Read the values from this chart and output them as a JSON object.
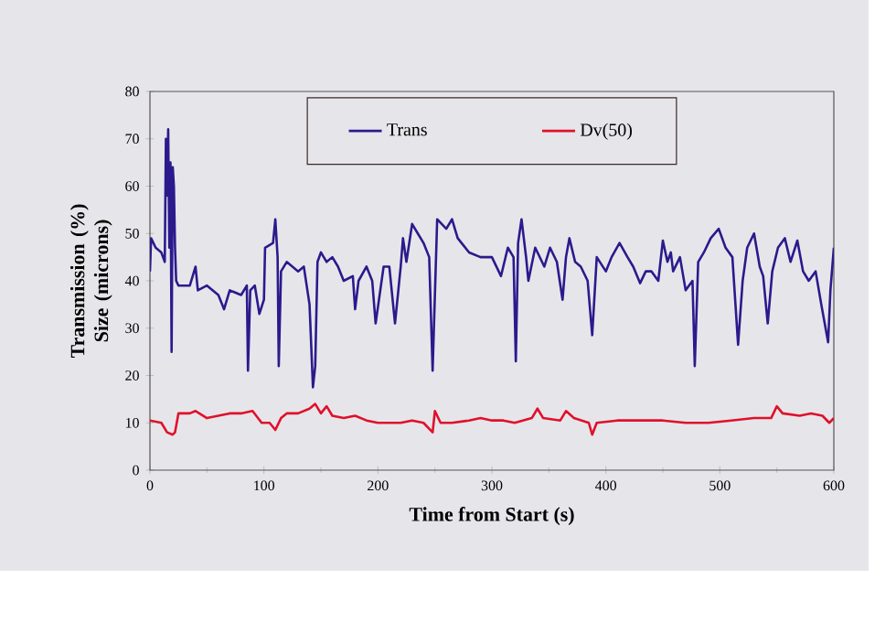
{
  "chart_data": {
    "type": "line",
    "xlabel": "Time from Start (s)",
    "ylabel": "Transmission (%) Size (microns)",
    "xlim": [
      0,
      600
    ],
    "xticks": [
      0,
      100,
      200,
      300,
      400,
      500,
      600
    ],
    "ylim": [
      0,
      80
    ],
    "yticks": [
      0,
      10,
      20,
      30,
      40,
      50,
      60,
      70,
      80
    ],
    "legend": "top",
    "grid": false,
    "series": [
      {
        "name": "Trans",
        "color": "#2b1a8c",
        "x": [
          0,
          1,
          5,
          10,
          13,
          14,
          15,
          16,
          17,
          18,
          19,
          20,
          21,
          22,
          23,
          25,
          35,
          40,
          42,
          50,
          60,
          65,
          70,
          80,
          85,
          86,
          88,
          92,
          96,
          100,
          101,
          108,
          110,
          112,
          113,
          115,
          120,
          130,
          135,
          140,
          143,
          145,
          147,
          150,
          155,
          160,
          165,
          170,
          178,
          180,
          183,
          190,
          195,
          198,
          205,
          210,
          215,
          220,
          222,
          225,
          230,
          235,
          240,
          245,
          248,
          252,
          260,
          265,
          270,
          280,
          290,
          300,
          308,
          314,
          319,
          321,
          323,
          326,
          330,
          332,
          338,
          346,
          351,
          357,
          362,
          365,
          368,
          373,
          378,
          384,
          388,
          392,
          400,
          405,
          412,
          419,
          424,
          430,
          435,
          440,
          446,
          450,
          454,
          457,
          459,
          465,
          470,
          476,
          478,
          481,
          486,
          492,
          499,
          505,
          511,
          516,
          520,
          524,
          530,
          535,
          538,
          542,
          546,
          551,
          557,
          562,
          568,
          573,
          578,
          584,
          589,
          595,
          597,
          600
        ],
        "values": [
          42,
          49,
          47,
          46,
          44,
          70,
          58,
          72,
          47,
          65,
          25,
          64,
          60,
          47,
          40,
          39,
          39,
          43,
          38,
          39,
          37,
          34,
          38,
          37,
          39,
          21,
          38,
          39,
          33,
          36,
          47,
          48,
          53,
          45,
          22,
          42,
          44,
          42,
          43,
          35,
          17.5,
          22,
          44,
          46,
          44,
          45,
          43,
          40,
          41,
          34,
          40,
          43,
          40,
          31,
          43,
          43,
          31,
          43,
          49,
          44,
          52,
          50,
          48,
          45,
          21,
          53,
          51,
          53,
          49,
          46,
          45,
          45,
          41,
          47,
          45,
          23,
          48,
          53,
          45,
          40,
          47,
          43,
          47,
          44,
          36,
          45,
          49,
          44,
          43,
          40,
          28.5,
          45,
          42,
          45,
          48,
          45,
          43,
          39.5,
          42,
          42,
          40,
          48.5,
          44,
          46,
          42,
          45,
          38,
          40,
          22,
          44,
          46,
          49,
          51,
          47,
          45,
          26.5,
          40,
          47,
          50,
          43,
          41,
          31,
          42,
          47,
          49,
          44,
          48.5,
          42,
          40,
          42,
          35,
          27,
          38,
          47
        ]
      },
      {
        "name": "Dv(50)",
        "color": "#e0102c",
        "x": [
          0,
          10,
          15,
          20,
          22,
          25,
          35,
          40,
          50,
          60,
          70,
          80,
          90,
          98,
          105,
          110,
          115,
          120,
          130,
          140,
          145,
          150,
          155,
          160,
          170,
          180,
          190,
          200,
          210,
          220,
          230,
          240,
          248,
          250,
          255,
          265,
          280,
          290,
          300,
          310,
          320,
          335,
          340,
          345,
          360,
          365,
          372,
          385,
          388,
          392,
          410,
          430,
          450,
          470,
          490,
          510,
          530,
          545,
          550,
          555,
          570,
          580,
          590,
          596,
          600
        ],
        "values": [
          10.5,
          10,
          8,
          7.5,
          8,
          12,
          12,
          12.5,
          11,
          11.5,
          12,
          12,
          12.5,
          10,
          10,
          8.5,
          11,
          12,
          12,
          13,
          14,
          12,
          13.5,
          11.5,
          11,
          11.5,
          10.5,
          10,
          10,
          10,
          10.5,
          10,
          8,
          12.5,
          10,
          10,
          10.5,
          11,
          10.5,
          10.5,
          10,
          11,
          13,
          11,
          10.5,
          12.5,
          11,
          10,
          7.5,
          10,
          10.5,
          10.5,
          10.5,
          10,
          10,
          10.5,
          11,
          11,
          13.5,
          12,
          11.5,
          12,
          11.5,
          10,
          11
        ]
      }
    ]
  }
}
